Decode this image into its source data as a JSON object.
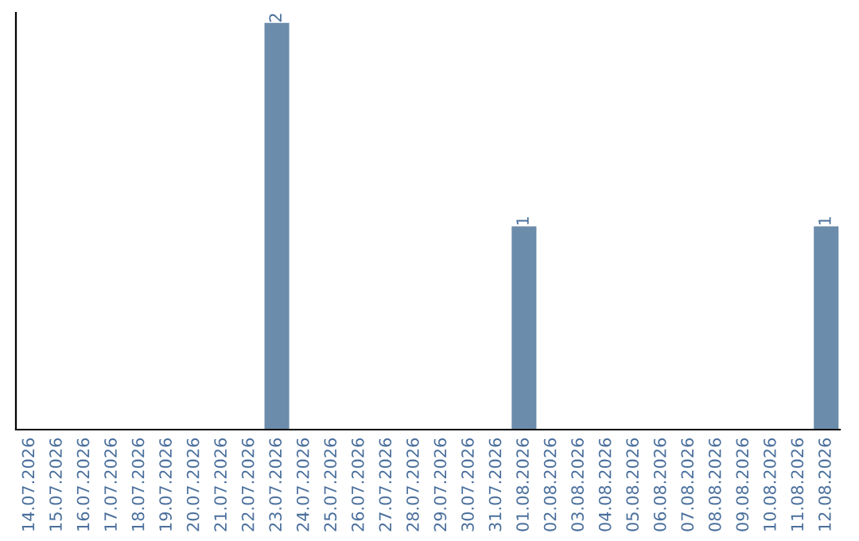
{
  "chart_data": {
    "type": "bar",
    "categories": [
      "14.07.2026",
      "15.07.2026",
      "16.07.2026",
      "17.07.2026",
      "18.07.2026",
      "19.07.2026",
      "20.07.2026",
      "21.07.2026",
      "22.07.2026",
      "23.07.2026",
      "24.07.2026",
      "25.07.2026",
      "26.07.2026",
      "27.07.2026",
      "28.07.2026",
      "29.07.2026",
      "30.07.2026",
      "31.07.2026",
      "01.08.2026",
      "02.08.2026",
      "03.08.2026",
      "04.08.2026",
      "05.08.2026",
      "06.08.2026",
      "07.08.2026",
      "08.08.2026",
      "09.08.2026",
      "10.08.2026",
      "11.08.2026",
      "12.08.2026"
    ],
    "values": [
      0,
      0,
      0,
      0,
      0,
      0,
      0,
      0,
      0,
      2,
      0,
      0,
      0,
      0,
      0,
      0,
      0,
      0,
      1,
      0,
      0,
      0,
      0,
      0,
      0,
      0,
      0,
      0,
      0,
      1
    ],
    "value_labels": [
      null,
      null,
      null,
      null,
      null,
      null,
      null,
      null,
      null,
      "2",
      null,
      null,
      null,
      null,
      null,
      null,
      null,
      null,
      "1",
      null,
      null,
      null,
      null,
      null,
      null,
      null,
      null,
      null,
      null,
      "1"
    ],
    "color": "#6b8cab",
    "ylim": [
      0,
      2.05
    ],
    "tick_labels": "x",
    "grid": false,
    "legend": false
  }
}
